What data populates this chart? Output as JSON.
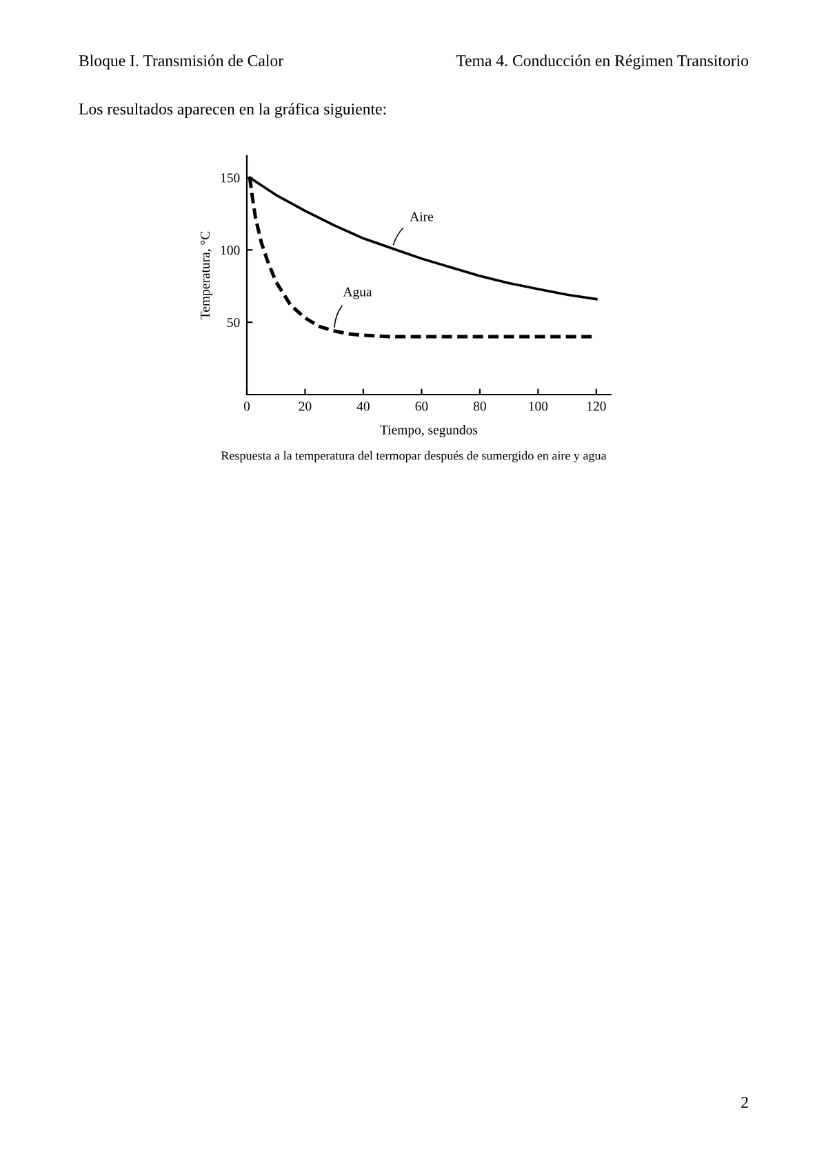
{
  "chart_data": {
    "type": "line",
    "xlabel": "Tiempo, segundos",
    "ylabel": "Temperatura, °C",
    "xlim": [
      0,
      125
    ],
    "ylim": [
      0,
      165
    ],
    "xticks": [
      0,
      20,
      40,
      60,
      80,
      100,
      120
    ],
    "yticks": [
      50,
      100,
      150
    ],
    "grid": false,
    "legend": false,
    "marker": "none",
    "series": [
      {
        "name": "Aire",
        "color": "#000000",
        "line_style": "solid",
        "x": [
          1,
          10,
          20,
          30,
          40,
          50,
          60,
          70,
          80,
          90,
          100,
          110,
          120
        ],
        "values": [
          150,
          138,
          127,
          117,
          108,
          101,
          94,
          88,
          82,
          77,
          73,
          69,
          66
        ]
      },
      {
        "name": "Agua",
        "color": "#000000",
        "line_style": "dashed",
        "x": [
          1,
          2,
          3,
          5,
          7,
          10,
          15,
          20,
          25,
          30,
          35,
          40,
          50,
          60,
          80,
          100,
          120
        ],
        "values": [
          150,
          135,
          122,
          105,
          93,
          78,
          62,
          53,
          47,
          44,
          42,
          41,
          40,
          40,
          40,
          40,
          40
        ]
      }
    ],
    "annotations": [
      "Bloque I. Transmisión de Calor",
      "Tema 4. Conducción en Régimen Transitorio",
      "Los resultados aparecen en la gráfica siguiente:",
      "Respuesta a la temperatura del termopar después de sumergido en aire y agua",
      "2"
    ]
  }
}
